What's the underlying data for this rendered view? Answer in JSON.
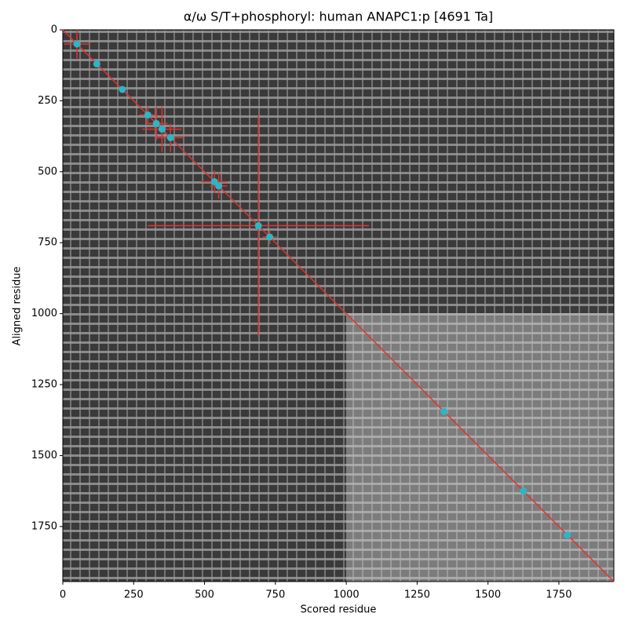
{
  "chart_data": {
    "type": "scatter",
    "title": "α/ω S/T+phosphoryl: human ANAPC1:p [4691 Ta]",
    "x_label": "Scored residue",
    "y_label": "Aligned residue",
    "xlim": [
      0,
      1944
    ],
    "ylim": [
      0,
      1944
    ],
    "y_inverted": true,
    "xticks": [
      0,
      250,
      500,
      750,
      1000,
      1250,
      1500,
      1750
    ],
    "yticks": [
      0,
      250,
      500,
      750,
      1000,
      1250,
      1500,
      1750
    ],
    "diagonal_color": "#e83030",
    "series": [
      {
        "color": "#2ab7c6",
        "error_color": "#e83030",
        "x": [
          50,
          120,
          210,
          300,
          330,
          350,
          380,
          535,
          550,
          690,
          730,
          1345,
          1625,
          1780
        ],
        "y": [
          50,
          120,
          210,
          300,
          330,
          350,
          380,
          535,
          550,
          690,
          730,
          1345,
          1625,
          1780
        ],
        "xerr": [
          45,
          null,
          null,
          30,
          40,
          70,
          50,
          45,
          30,
          390,
          25,
          null,
          null,
          null
        ],
        "yerr": [
          50,
          null,
          null,
          30,
          60,
          80,
          50,
          40,
          45,
          390,
          25,
          null,
          null,
          null
        ]
      }
    ]
  }
}
